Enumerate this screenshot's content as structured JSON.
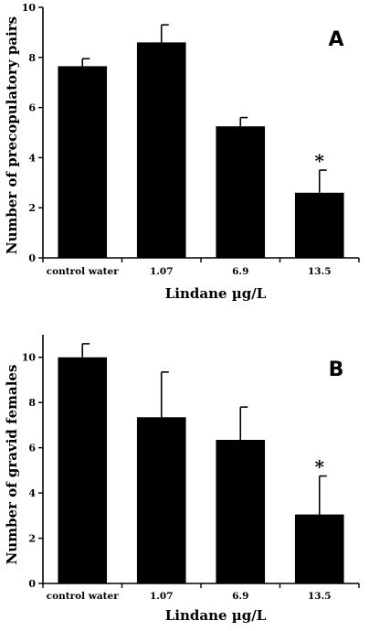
{
  "chart_data": [
    {
      "type": "bar",
      "panel": "A",
      "categories": [
        "control water",
        "1.07",
        "6.9",
        "13.5"
      ],
      "values": [
        7.65,
        8.6,
        5.25,
        2.6
      ],
      "errors": [
        0.3,
        0.7,
        0.35,
        0.9
      ],
      "significance": [
        "",
        "",
        "",
        "*"
      ],
      "xlabel": "Lindane µg/L",
      "ylabel": "Number of precopulatory pairs",
      "ylim": [
        0,
        10
      ],
      "yticks": [
        "0",
        "2",
        "4",
        "6",
        "8",
        "10"
      ],
      "grid": false,
      "bar_color": "#000000"
    },
    {
      "type": "bar",
      "panel": "B",
      "categories": [
        "control water",
        "1.07",
        "6.9",
        "13.5"
      ],
      "values": [
        10.0,
        7.35,
        6.35,
        3.05
      ],
      "errors": [
        0.6,
        2.0,
        1.45,
        1.7
      ],
      "significance": [
        "",
        "",
        "",
        "*"
      ],
      "xlabel": "Lindane µg/L",
      "ylabel": "Number of gravid females",
      "ylim": [
        0,
        11
      ],
      "yticks": [
        "0",
        "2",
        "4",
        "6",
        "8",
        "10"
      ],
      "grid": false,
      "bar_color": "#000000"
    }
  ]
}
